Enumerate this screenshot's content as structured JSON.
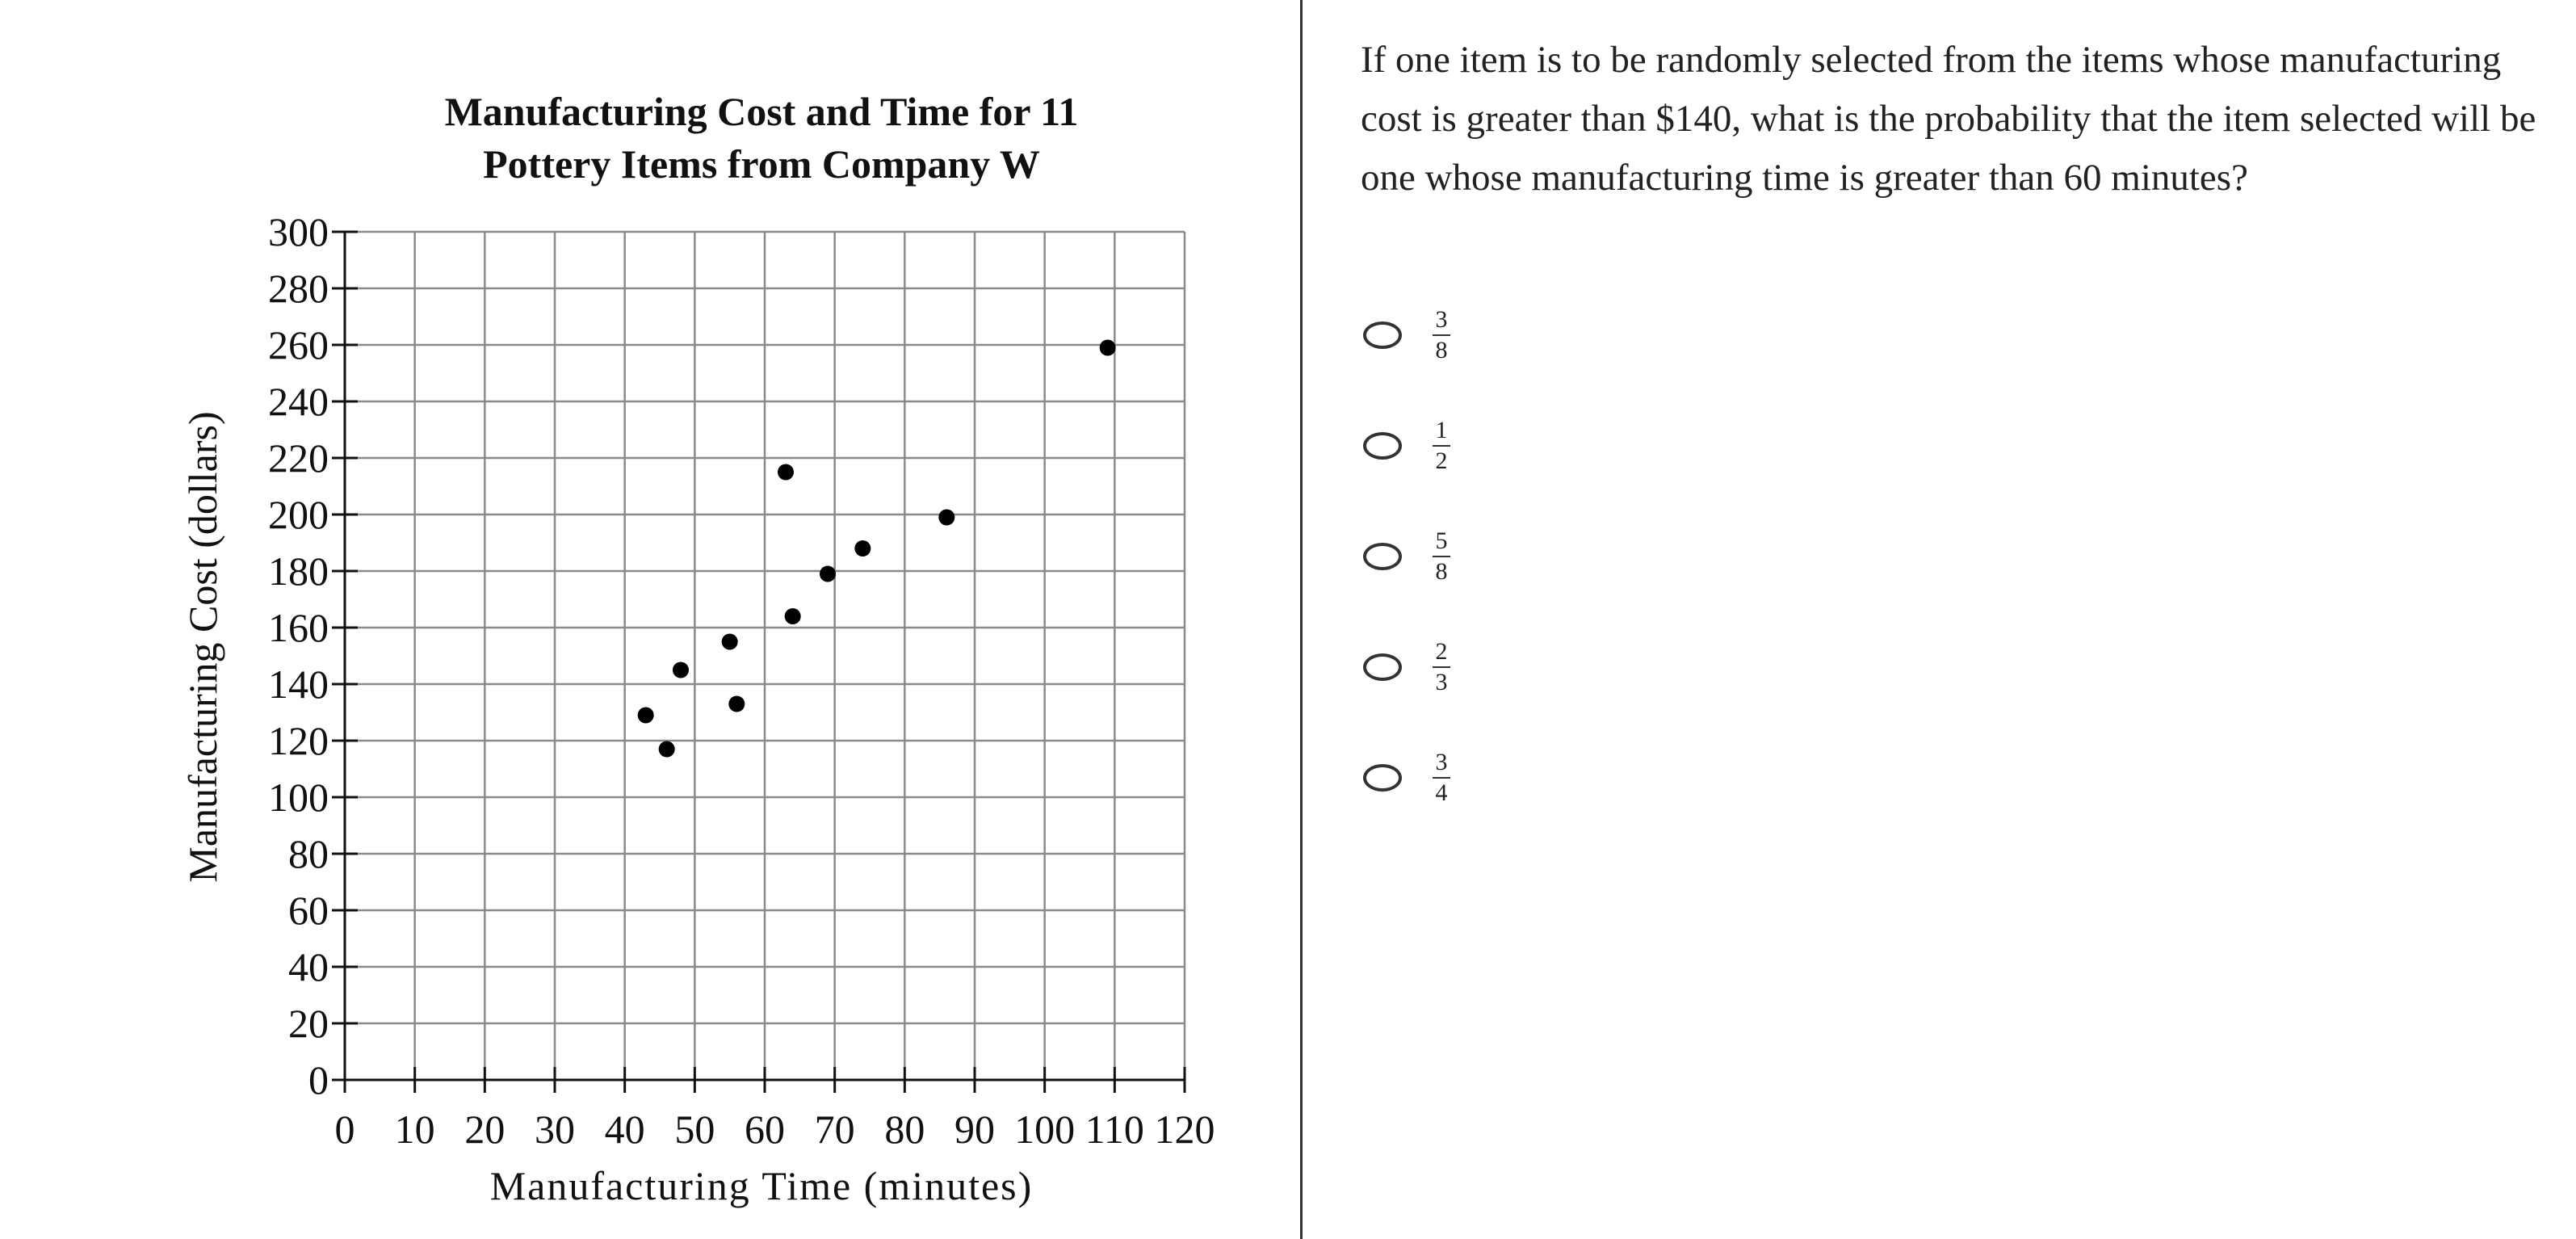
{
  "chart_data": {
    "type": "scatter",
    "title_lines": [
      "Manufacturing Cost and Time for 11",
      "Pottery Items from Company W"
    ],
    "xlabel": "Manufacturing Time (minutes)",
    "ylabel": "Manufacturing Cost (dollars)",
    "xlim": [
      0,
      120
    ],
    "ylim": [
      0,
      300
    ],
    "xticks": [
      0,
      10,
      20,
      30,
      40,
      50,
      60,
      70,
      80,
      90,
      100,
      110,
      120
    ],
    "yticks": [
      0,
      20,
      40,
      60,
      80,
      100,
      120,
      140,
      160,
      180,
      200,
      220,
      240,
      260,
      280,
      300
    ],
    "grid": true,
    "points": [
      {
        "x": 43,
        "y": 129
      },
      {
        "x": 46,
        "y": 117
      },
      {
        "x": 48,
        "y": 145
      },
      {
        "x": 55,
        "y": 155
      },
      {
        "x": 56,
        "y": 133
      },
      {
        "x": 63,
        "y": 215
      },
      {
        "x": 64,
        "y": 164
      },
      {
        "x": 69,
        "y": 179
      },
      {
        "x": 74,
        "y": 188
      },
      {
        "x": 86,
        "y": 199
      },
      {
        "x": 109,
        "y": 259
      }
    ]
  },
  "question": {
    "text": "If one item is to be randomly selected from the items whose manufacturing cost is greater than $140, what is the probability that the item selected will be one whose manufacturing time is greater than 60 minutes?"
  },
  "options": [
    {
      "numerator": "3",
      "denominator": "8"
    },
    {
      "numerator": "1",
      "denominator": "2"
    },
    {
      "numerator": "5",
      "denominator": "8"
    },
    {
      "numerator": "2",
      "denominator": "3"
    },
    {
      "numerator": "3",
      "denominator": "4"
    }
  ]
}
